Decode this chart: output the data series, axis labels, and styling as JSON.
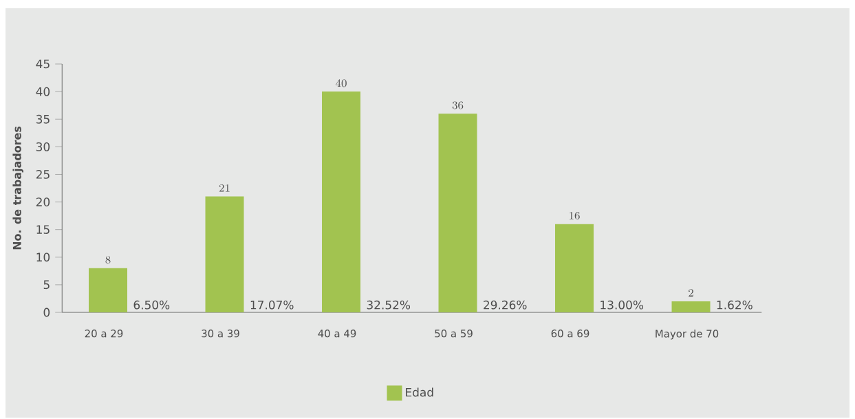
{
  "chart_data": {
    "type": "bar",
    "ylabel": "No. de trabajadores",
    "categories": [
      "20 a 29",
      "30 a 39",
      "40 a 49",
      "50 a 59",
      "60 a 69",
      "Mayor de 70"
    ],
    "series": [
      {
        "name": "Edad",
        "color": "#a2c350",
        "values": [
          8,
          21,
          40,
          36,
          16,
          2
        ]
      }
    ],
    "ylim": [
      0,
      45
    ],
    "yticks": [
      0,
      5,
      10,
      15,
      20,
      25,
      30,
      35,
      40,
      45
    ],
    "data_labels": true,
    "legend": "bottom",
    "annotations": [
      {
        "text": "6.50%",
        "x": "20 a 29",
        "y": 0
      },
      {
        "text": "17.07%",
        "x": "30 a 39",
        "y": 0
      },
      {
        "text": "32.52%",
        "x": "40 a 49",
        "y": 0
      },
      {
        "text": "29.26%",
        "x": "50 a 59",
        "y": 0
      },
      {
        "text": "13.00%",
        "x": "60 a 69",
        "y": 0
      },
      {
        "text": "1.62%",
        "x": "Mayor de 70",
        "y": 0
      }
    ]
  }
}
